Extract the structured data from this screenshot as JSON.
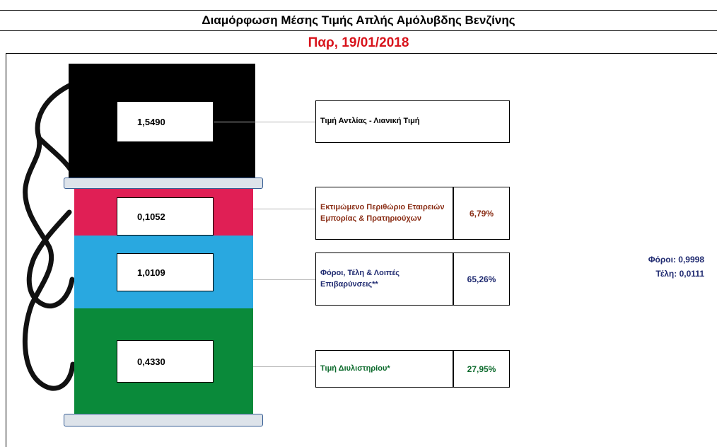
{
  "header": {
    "title": "Διαμόρφωση Μέσης Τιμής Απλής Αμόλυβδης Βενζίνης",
    "date": "Παρ, 19/01/2018"
  },
  "pump": {
    "segments": [
      {
        "key": "retail",
        "value": "1,5490",
        "label": "Τιμή Αντλίας - Λιανική Τιμή",
        "color": "#000000",
        "label_color": "#000000"
      },
      {
        "key": "margin",
        "value": "0,1052",
        "label": "Εκτιμώμενο Περιθώριο Εταιρειών Εμπορίας & Πρατηριούχων",
        "percent": "6,79%",
        "color": "#e01f55",
        "label_color": "#8a2e16"
      },
      {
        "key": "taxes",
        "value": "1,0109",
        "label": "Φόροι, Τέλη & Λοιπές Επιβαρύνσεις**",
        "percent": "65,26%",
        "color": "#29a8e0",
        "label_color": "#1f2a70"
      },
      {
        "key": "refinery",
        "value": "0,4330",
        "label": "Τιμή Διυλιστηρίου*",
        "percent": "27,95%",
        "color": "#0a8a3a",
        "label_color": "#0c6a2c"
      }
    ]
  },
  "tax_breakdown": {
    "taxes_label": "Φόροι:",
    "taxes_value": "0,9998",
    "fees_label": "Τέλη:",
    "fees_value": "0,0111"
  }
}
